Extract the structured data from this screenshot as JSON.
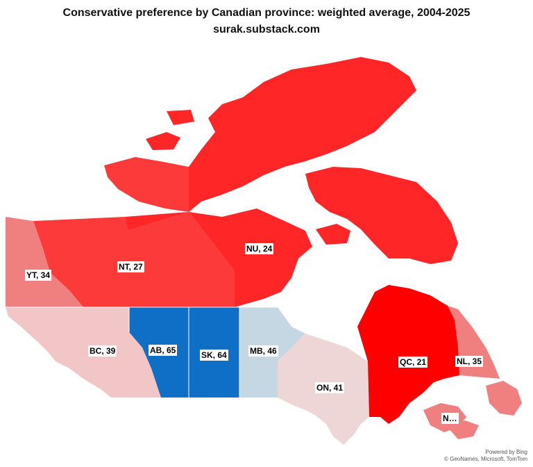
{
  "title": "Conservative preference by Canadian province: weighted average, 2004-2025",
  "subtitle": "surak.substack.com",
  "colors": {
    "strong_red": "#ff0000",
    "red": "#fe2626",
    "mid_red": "#fd3a3a",
    "light_red": "#f08080",
    "pale_red": "#f2c6c6",
    "very_pale": "#eed6d6",
    "blue": "#0f6fc6",
    "pale_blue": "#c6d7e4",
    "water": "#ffffff"
  },
  "regions": [
    {
      "code": "YT",
      "label": "YT, 34",
      "value": 34
    },
    {
      "code": "NT",
      "label": "NT, 27",
      "value": 27
    },
    {
      "code": "NU",
      "label": "NU, 24",
      "value": 24
    },
    {
      "code": "BC",
      "label": "BC, 39",
      "value": 39
    },
    {
      "code": "AB",
      "label": "AB, 65",
      "value": 65
    },
    {
      "code": "SK",
      "label": "SK, 64",
      "value": 64
    },
    {
      "code": "MB",
      "label": "MB, 46",
      "value": 46
    },
    {
      "code": "ON",
      "label": "ON, 41",
      "value": 41
    },
    {
      "code": "QC",
      "label": "QC, 21",
      "value": 21
    },
    {
      "code": "NL",
      "label": "NL, 35",
      "value": 35
    },
    {
      "code": "NS",
      "label": "N…"
    }
  ],
  "credits": {
    "line1": "Powered by Bing",
    "line2": "© GeoNames, Microsoft, TomTom"
  }
}
